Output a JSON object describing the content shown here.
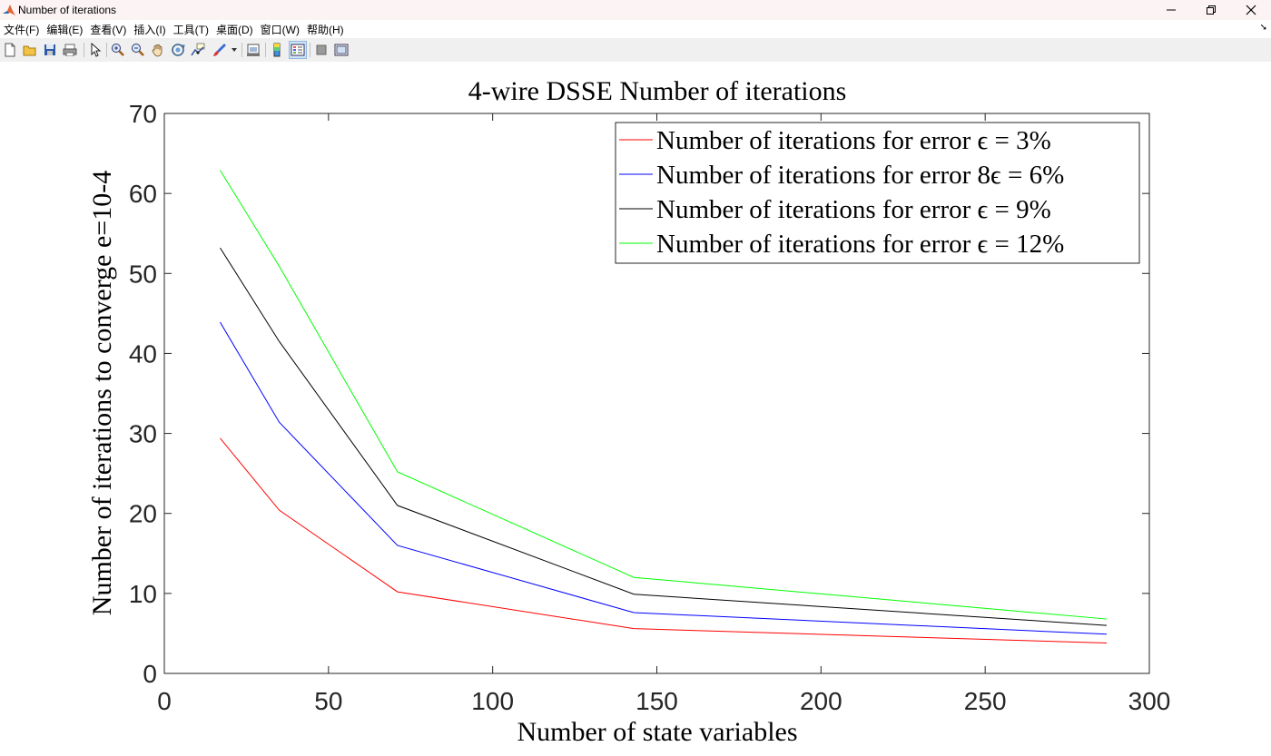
{
  "window": {
    "title": "Number of iterations"
  },
  "menu": {
    "items": [
      "文件(F)",
      "编辑(E)",
      "查看(V)",
      "插入(I)",
      "工具(T)",
      "桌面(D)",
      "窗口(W)",
      "帮助(H)"
    ]
  },
  "toolbar": {
    "icons": [
      "new-figure-icon",
      "open-file-icon",
      "save-icon",
      "print-icon",
      "pointer-icon",
      "zoom-in-icon",
      "zoom-out-icon",
      "pan-hand-icon",
      "rotate-3d-icon",
      "data-cursor-icon",
      "brush-icon",
      "brush-dropdown-icon",
      "link-plot-icon",
      "insert-colorbar-icon",
      "insert-legend-icon",
      "hide-plot-tools-icon",
      "show-plot-tools-icon"
    ]
  },
  "chart_data": {
    "type": "line",
    "title": "4-wire DSSE Number of iterations",
    "xlabel": "Number of state variables",
    "ylabel": "Number of iterations to converge e=10-4",
    "xlim": [
      0,
      300
    ],
    "ylim": [
      0,
      70
    ],
    "xticks": [
      "0",
      "50",
      "100",
      "150",
      "200",
      "250",
      "300"
    ],
    "yticks": [
      "0",
      "10",
      "20",
      "30",
      "40",
      "50",
      "60",
      "70"
    ],
    "grid": false,
    "legend_position": "top-right",
    "x": [
      17,
      35,
      71,
      143,
      287
    ],
    "series": [
      {
        "name": "Number of iterations for error ϵ = 3%",
        "color": "#ff0000",
        "values": [
          29.4,
          20.4,
          10.2,
          5.6,
          3.8
        ]
      },
      {
        "name": "Number of iterations for error 8ϵ = 6%",
        "color": "#0000ff",
        "values": [
          43.9,
          31.4,
          16.0,
          7.6,
          4.9
        ]
      },
      {
        "name": "Number of iterations for error ϵ = 9%",
        "color": "#000000",
        "values": [
          53.2,
          41.5,
          21.0,
          9.9,
          6.0
        ]
      },
      {
        "name": "Number of iterations for error ϵ = 12%",
        "color": "#00ff00",
        "values": [
          62.9,
          50.9,
          25.2,
          12.0,
          6.8
        ]
      }
    ]
  }
}
